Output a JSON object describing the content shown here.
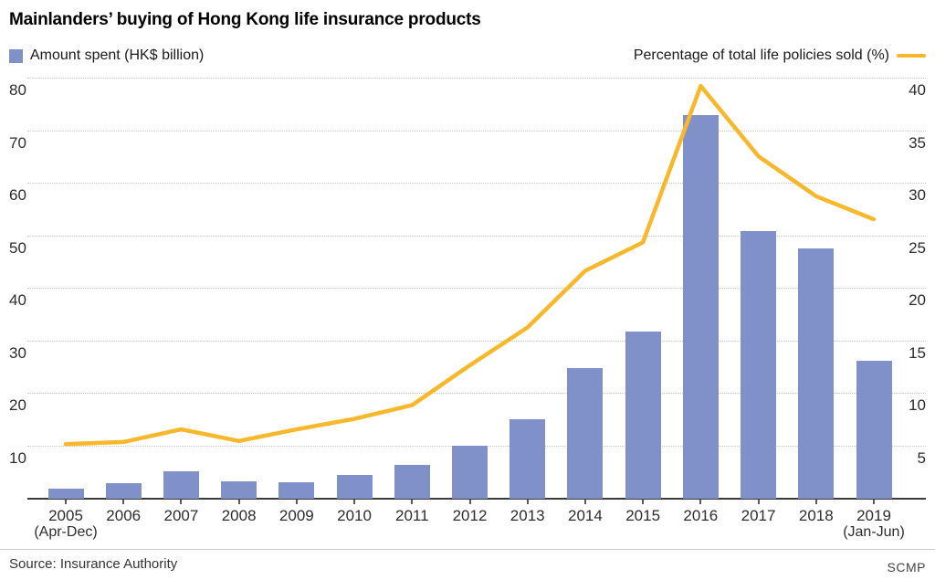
{
  "title": "Mainlanders’ buying of Hong Kong life insurance products",
  "legend": {
    "bar_label": "Amount spent (HK$ billion)",
    "line_label": "Percentage of total life policies sold (%)"
  },
  "footer": {
    "source": "Source: Insurance Authority",
    "credit": "SCMP"
  },
  "colors": {
    "bar": "#8090c8",
    "line": "#f9b72b",
    "gridline": "#c4c4c4",
    "axis_line": "#3b3b3b"
  },
  "chart_data": {
    "type": "bar",
    "subtype": "bar-and-line-dual-axis",
    "title": "Mainlanders’ buying of Hong Kong life insurance products",
    "categories": [
      "2005",
      "2006",
      "2007",
      "2008",
      "2009",
      "2010",
      "2011",
      "2012",
      "2013",
      "2014",
      "2015",
      "2016",
      "2017",
      "2018",
      "2019"
    ],
    "x_sublabels": [
      {
        "index": 0,
        "label": "(Apr-Dec)"
      },
      {
        "index": 14,
        "label": "(Jan-Jun)"
      }
    ],
    "series": [
      {
        "name": "Amount spent (HK$ billion)",
        "type": "bar",
        "axis": "left",
        "values": [
          1.9,
          3.0,
          5.2,
          3.3,
          3.1,
          4.5,
          6.4,
          10.1,
          15.1,
          24.9,
          31.8,
          73.0,
          51.0,
          47.7,
          26.3
        ]
      },
      {
        "name": "Percentage of total life policies sold (%)",
        "type": "line",
        "axis": "right",
        "values": [
          5.2,
          5.4,
          6.6,
          5.5,
          6.6,
          7.6,
          8.9,
          12.7,
          16.3,
          21.7,
          24.4,
          39.3,
          32.6,
          28.8,
          26.6
        ]
      }
    ],
    "left_axis": {
      "ticks": [
        80,
        70,
        60,
        50,
        40,
        30,
        20,
        10
      ],
      "min": 0,
      "max": 80
    },
    "right_axis": {
      "ticks": [
        40,
        35,
        30,
        25,
        20,
        15,
        10,
        5
      ],
      "min": 0,
      "max": 40
    },
    "grid": "horizontal-dotted",
    "legend_position": "top"
  }
}
